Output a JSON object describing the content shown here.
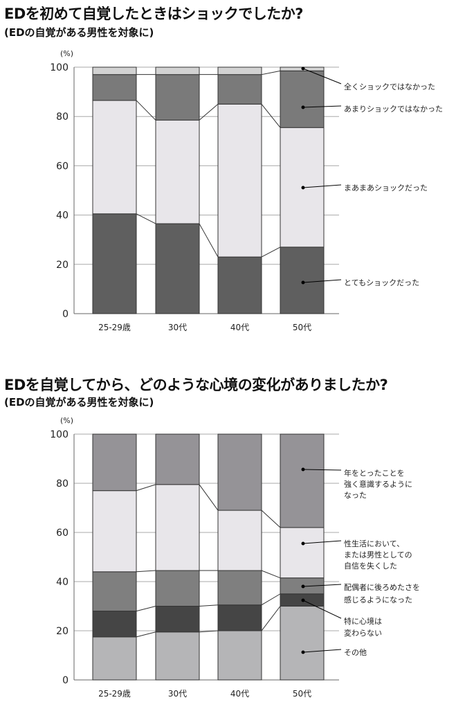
{
  "chart_data": [
    {
      "type": "bar",
      "stacked": true,
      "title": "EDを初めて自覚したときはショックでしたか?",
      "subtitle": "(EDの自覚がある男性を対象に)",
      "ylabel": "(%)",
      "ylim": [
        0,
        100
      ],
      "yticks": [
        "0",
        "20",
        "40",
        "60",
        "80",
        "100"
      ],
      "grid": true,
      "categories": [
        "25-29歳",
        "30代",
        "40代",
        "50代"
      ],
      "series": [
        {
          "name": "とてもショックだった",
          "lines": [
            "とてもショックだった"
          ],
          "values": [
            40.5,
            36.5,
            23,
            27
          ],
          "color": "#5f5f5f"
        },
        {
          "name": "まあまあショックだった",
          "lines": [
            "まあまあショックだった"
          ],
          "values": [
            46,
            42,
            62,
            48.5
          ],
          "color": "#e8e6ea"
        },
        {
          "name": "あまりショックではなかった",
          "lines": [
            "あまりショックではなかった"
          ],
          "values": [
            10.5,
            18.5,
            12,
            23
          ],
          "color": "#7a7a7a"
        },
        {
          "name": "全くショックではなかった",
          "lines": [
            "全くショックではなかった"
          ],
          "values": [
            3,
            3,
            3,
            1.5
          ],
          "color": "#d2d2d2"
        }
      ],
      "legend": "right"
    },
    {
      "type": "bar",
      "stacked": true,
      "title": "EDを自覚してから、どのような心境の変化がありましたか?",
      "subtitle": "(EDの自覚がある男性を対象に)",
      "ylabel": "(%)",
      "ylim": [
        0,
        100
      ],
      "yticks": [
        "0",
        "20",
        "40",
        "60",
        "80",
        "100"
      ],
      "grid": true,
      "categories": [
        "25-29歳",
        "30代",
        "40代",
        "50代"
      ],
      "series": [
        {
          "name": "その他",
          "lines": [
            "その他"
          ],
          "values": [
            17.5,
            19.5,
            20,
            30
          ],
          "color": "#b5b5b7"
        },
        {
          "name": "特に心境は変わらない",
          "lines": [
            "特に心境は",
            "変わらない"
          ],
          "values": [
            10.5,
            10.5,
            10.5,
            5
          ],
          "color": "#454545"
        },
        {
          "name": "配偶者に後ろめたさを感じるようになった",
          "lines": [
            "配偶者に後ろめたさを",
            "感じるようになった"
          ],
          "values": [
            16,
            14.5,
            14,
            6.5
          ],
          "color": "#7f7f7f"
        },
        {
          "name": "性生活において、または男性としての自信を失くした",
          "lines": [
            "性生活において、",
            "または男性としての",
            "自信を失くした"
          ],
          "values": [
            33,
            35,
            24.5,
            20.5
          ],
          "color": "#e8e6ea"
        },
        {
          "name": "年をとったことを強く意識するようになった",
          "lines": [
            "年をとったことを",
            "強く意識するように",
            "なった"
          ],
          "values": [
            23,
            20.5,
            31,
            38
          ],
          "color": "#959397"
        }
      ],
      "legend": "right"
    }
  ]
}
